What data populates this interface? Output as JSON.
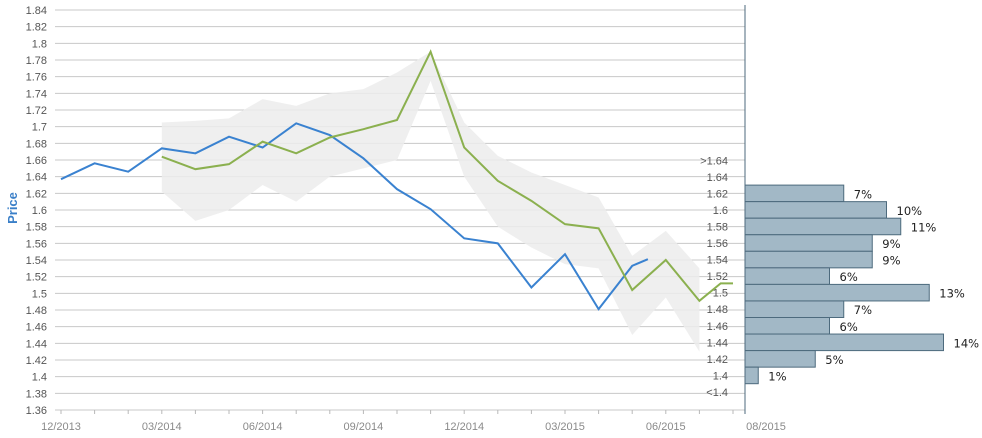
{
  "chart_data": {
    "type": "line",
    "ylabel": "Price",
    "ylim": [
      1.36,
      1.84
    ],
    "y_ticks": [
      "1.84",
      "1.82",
      "1.8",
      "1.78",
      "1.76",
      "1.74",
      "1.72",
      "1.7",
      "1.68",
      "1.66",
      "1.64",
      "1.62",
      "1.6",
      "1.58",
      "1.56",
      "1.54",
      "1.52",
      "1.5",
      "1.48",
      "1.46",
      "1.44",
      "1.42",
      "1.4",
      "1.38",
      "1.36"
    ],
    "x_ticks": [
      "12/2013",
      "03/2014",
      "06/2014",
      "09/2014",
      "12/2014",
      "03/2015",
      "06/2015",
      "08/2015"
    ],
    "grid": true,
    "colors": {
      "blue": "#3a82d0",
      "green": "#8bb04f",
      "band": "#e6e6e6",
      "hist_fill": "#a2b8c6",
      "hist_stroke": "#4d6a7d",
      "grid": "#c8c8c8"
    },
    "series": [
      {
        "color": "blue",
        "values": [
          {
            "x": "2013-12",
            "y": 1.637
          },
          {
            "x": "2014-01",
            "y": 1.656
          },
          {
            "x": "2014-02",
            "y": 1.646
          },
          {
            "x": "2014-03",
            "y": 1.674
          },
          {
            "x": "2014-04",
            "y": 1.668
          },
          {
            "x": "2014-05",
            "y": 1.688
          },
          {
            "x": "2014-06",
            "y": 1.675
          },
          {
            "x": "2014-07",
            "y": 1.704
          },
          {
            "x": "2014-08",
            "y": 1.69
          },
          {
            "x": "2014-09",
            "y": 1.662
          },
          {
            "x": "2014-10",
            "y": 1.625
          },
          {
            "x": "2014-11",
            "y": 1.601
          },
          {
            "x": "2014-12",
            "y": 1.566
          },
          {
            "x": "2015-01",
            "y": 1.56
          },
          {
            "x": "2015-02",
            "y": 1.507
          },
          {
            "x": "2015-03",
            "y": 1.547
          },
          {
            "x": "2015-04",
            "y": 1.481
          },
          {
            "x": "2015-05",
            "y": 1.533
          },
          {
            "x": "2015-05-15",
            "y": 1.541
          }
        ]
      },
      {
        "color": "green",
        "values": [
          {
            "x": "2014-03",
            "y": 1.664
          },
          {
            "x": "2014-04",
            "y": 1.649
          },
          {
            "x": "2014-05",
            "y": 1.655
          },
          {
            "x": "2014-06",
            "y": 1.682
          },
          {
            "x": "2014-07",
            "y": 1.668
          },
          {
            "x": "2014-08",
            "y": 1.687
          },
          {
            "x": "2014-09",
            "y": 1.697
          },
          {
            "x": "2014-10",
            "y": 1.708
          },
          {
            "x": "2014-11",
            "y": 1.79
          },
          {
            "x": "2014-12",
            "y": 1.675
          },
          {
            "x": "2015-01",
            "y": 1.635
          },
          {
            "x": "2015-02",
            "y": 1.611
          },
          {
            "x": "2015-03",
            "y": 1.583
          },
          {
            "x": "2015-04",
            "y": 1.578
          },
          {
            "x": "2015-05",
            "y": 1.504
          },
          {
            "x": "2015-06",
            "y": 1.54
          },
          {
            "x": "2015-07",
            "y": 1.491
          },
          {
            "x": "2015-07-20",
            "y": 1.512
          },
          {
            "x": "2015-08",
            "y": 1.512
          }
        ]
      }
    ],
    "band": {
      "upper": [
        {
          "x": "2014-03",
          "y": 1.705
        },
        {
          "x": "2014-04",
          "y": 1.707
        },
        {
          "x": "2014-05",
          "y": 1.71
        },
        {
          "x": "2014-06",
          "y": 1.733
        },
        {
          "x": "2014-07",
          "y": 1.725
        },
        {
          "x": "2014-08",
          "y": 1.74
        },
        {
          "x": "2014-09",
          "y": 1.745
        },
        {
          "x": "2014-10",
          "y": 1.765
        },
        {
          "x": "2014-11",
          "y": 1.79
        },
        {
          "x": "2014-12",
          "y": 1.705
        },
        {
          "x": "2015-01",
          "y": 1.665
        },
        {
          "x": "2015-02",
          "y": 1.645
        },
        {
          "x": "2015-03",
          "y": 1.63
        },
        {
          "x": "2015-04",
          "y": 1.615
        },
        {
          "x": "2015-05",
          "y": 1.545
        },
        {
          "x": "2015-06",
          "y": 1.575
        },
        {
          "x": "2015-07",
          "y": 1.53
        }
      ],
      "lower": [
        {
          "x": "2014-03",
          "y": 1.622
        },
        {
          "x": "2014-04",
          "y": 1.587
        },
        {
          "x": "2014-05",
          "y": 1.6
        },
        {
          "x": "2014-06",
          "y": 1.63
        },
        {
          "x": "2014-07",
          "y": 1.61
        },
        {
          "x": "2014-08",
          "y": 1.64
        },
        {
          "x": "2014-09",
          "y": 1.65
        },
        {
          "x": "2014-10",
          "y": 1.66
        },
        {
          "x": "2014-11",
          "y": 1.755
        },
        {
          "x": "2014-12",
          "y": 1.64
        },
        {
          "x": "2015-01",
          "y": 1.58
        },
        {
          "x": "2015-02",
          "y": 1.555
        },
        {
          "x": "2015-03",
          "y": 1.535
        },
        {
          "x": "2015-04",
          "y": 1.53
        },
        {
          "x": "2015-05",
          "y": 1.45
        },
        {
          "x": "2015-06",
          "y": 1.495
        },
        {
          "x": "2015-07",
          "y": 1.43
        }
      ]
    },
    "histogram": {
      "labels": [
        ">1.64",
        "1.64",
        "1.62",
        "1.6",
        "1.58",
        "1.56",
        "1.54",
        "1.52",
        "1.5",
        "1.48",
        "1.46",
        "1.44",
        "1.42",
        "1.4",
        "<1.4"
      ],
      "values": [
        0,
        0,
        7,
        10,
        11,
        9,
        9,
        6,
        13,
        7,
        6,
        14,
        5,
        1,
        0
      ],
      "value_labels": [
        "",
        "",
        "7%",
        "10%",
        "11%",
        "9%",
        "9%",
        "6%",
        "13%",
        "7%",
        "6%",
        "14%",
        "5%",
        "1%",
        ""
      ]
    }
  }
}
